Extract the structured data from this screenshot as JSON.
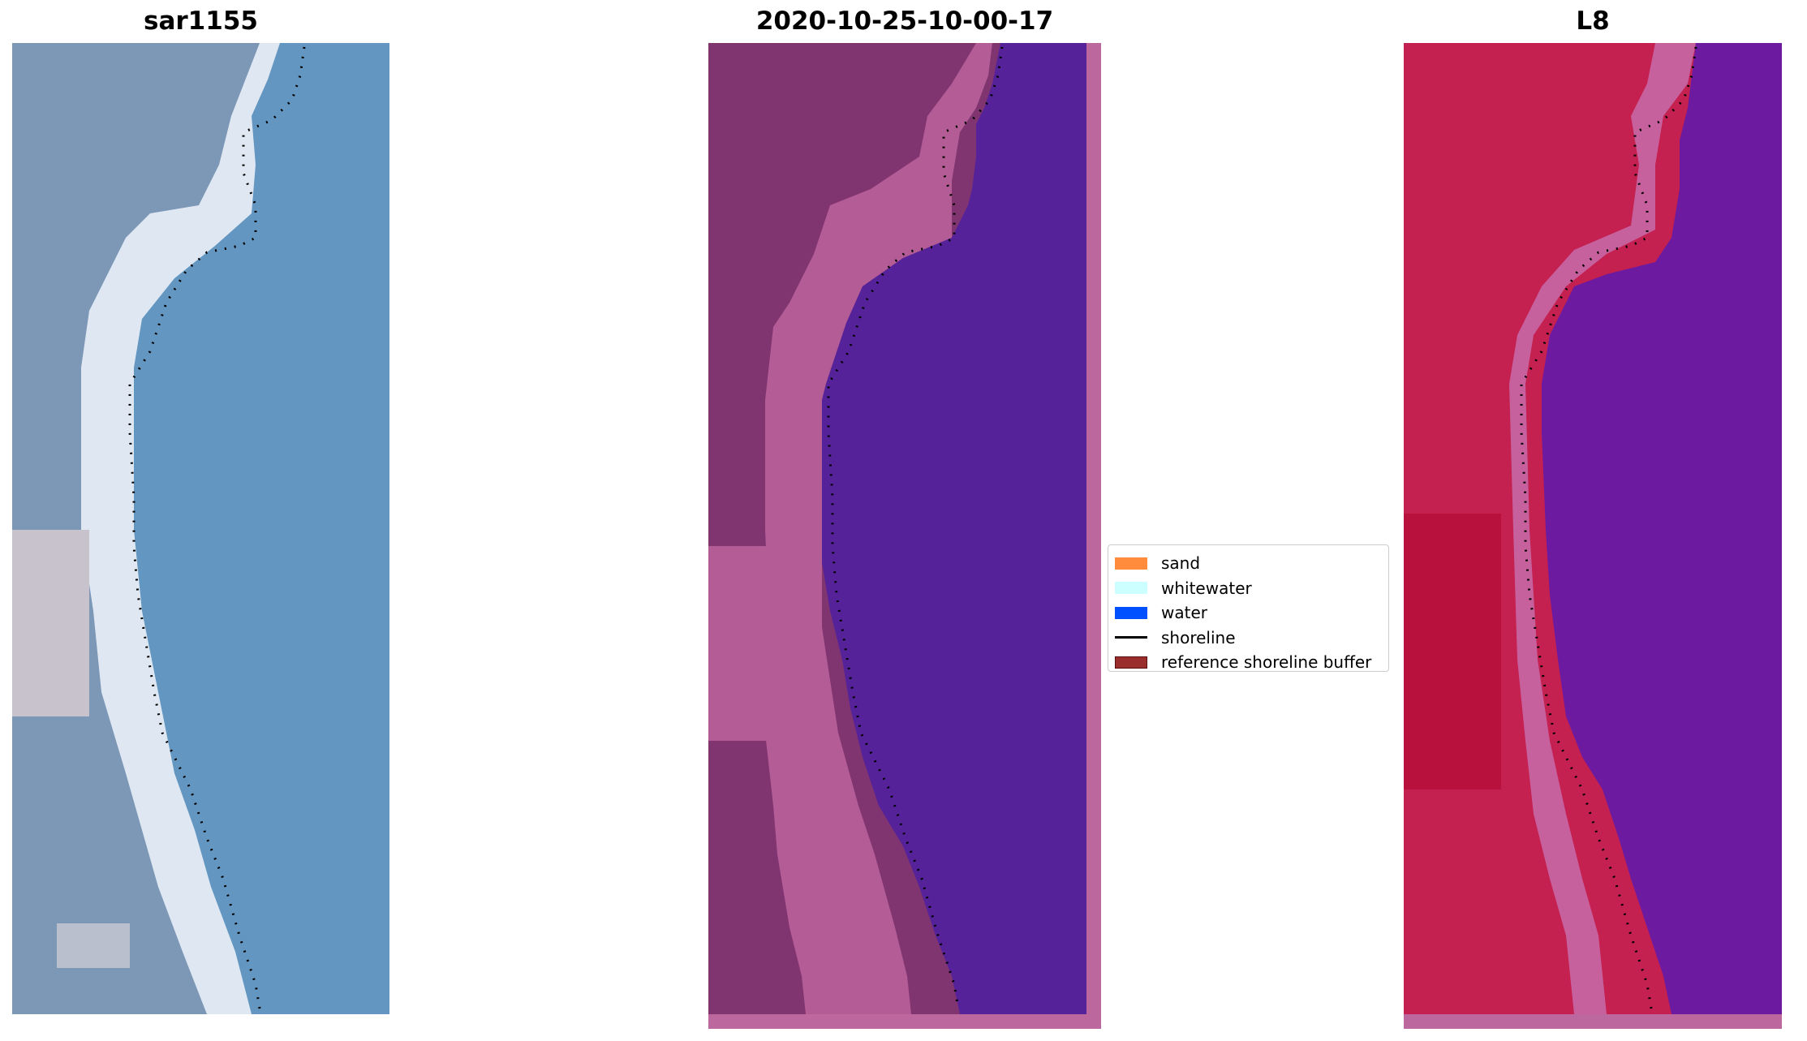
{
  "titles": {
    "left": "sar1155",
    "middle": "2020-10-25-10-00-17",
    "right": "L8"
  },
  "legend": {
    "items": [
      {
        "label": "sand",
        "kind": "patch",
        "color": "#ff8c3c",
        "border": "#ff8c3c"
      },
      {
        "label": "whitewater",
        "kind": "patch",
        "color": "#ccffff",
        "border": "#ccffff"
      },
      {
        "label": "water",
        "kind": "patch",
        "color": "#0050ff",
        "border": "#0050ff"
      },
      {
        "label": "shoreline",
        "kind": "line",
        "color": "#000000"
      },
      {
        "label": "reference shoreline buffer",
        "kind": "patch",
        "color": "#9b2d2d",
        "border": "#5a1010"
      }
    ]
  },
  "colors": {
    "rgb_water": "#6396c0",
    "rgb_land": "#7a94b4",
    "rgb_sand": "#e8eef4",
    "class_land": "#803570",
    "class_sand": "#b35c95",
    "class_water": "#56229a",
    "class_buffer": "#bc679d",
    "ndwi_land": "#c42050",
    "ndwi_water": "#6c1aa0",
    "ndwi_shore": "#c7619e",
    "shoreline_dots": "#000000"
  }
}
